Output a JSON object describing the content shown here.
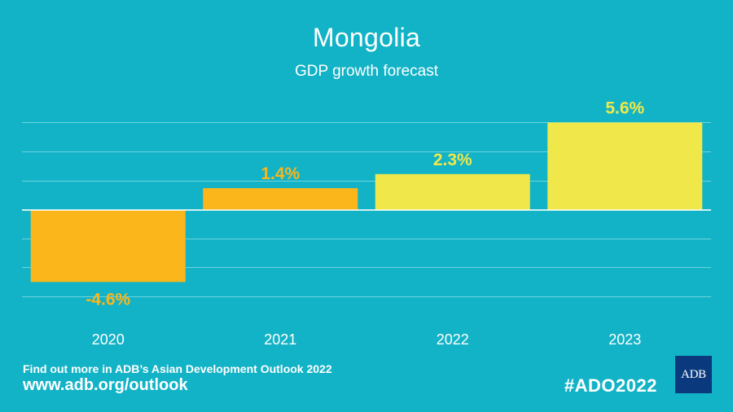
{
  "header": {
    "title": "Mongolia",
    "subtitle": "GDP growth forecast"
  },
  "chart_data": {
    "type": "bar",
    "categories": [
      "2020",
      "2021",
      "2022",
      "2023"
    ],
    "values": [
      -4.6,
      1.4,
      2.3,
      5.6
    ],
    "data_labels": [
      "-4.6%",
      "1.4%",
      "2.3%",
      "5.6%"
    ],
    "ylim": [
      -6,
      7.5
    ],
    "grid": true,
    "colors": {
      "actual": "#fbb61b",
      "forecast": "#f0e84a",
      "grid": "#6fd3df",
      "zero_line": "#ffffff"
    },
    "bar_color_keys": [
      "actual",
      "actual",
      "forecast",
      "forecast"
    ]
  },
  "footer": {
    "line1": "Find out more in ADB’s Asian Development Outlook 2022",
    "line2": "www.adb.org/outlook",
    "hashtag": "#ADO2022",
    "logo_text": "ADB"
  }
}
